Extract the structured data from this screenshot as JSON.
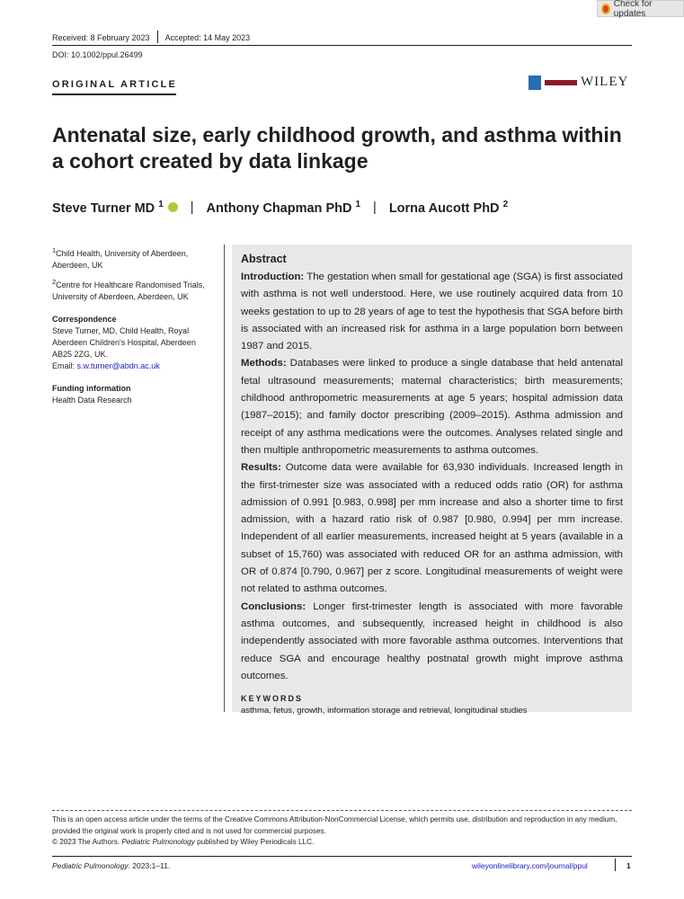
{
  "check_updates": "Check for updates",
  "received": "Received: 8 February 2023",
  "accepted": "Accepted: 14 May 2023",
  "doi": "DOI: 10.1002/ppul.26499",
  "article_type": "ORIGINAL ARTICLE",
  "publisher": "WILEY",
  "title": "Antenatal size, early childhood growth, and asthma within a cohort created by data linkage",
  "authors": [
    {
      "name": "Steve Turner MD",
      "sup": "1"
    },
    {
      "name": "Anthony Chapman PhD",
      "sup": "1"
    },
    {
      "name": "Lorna Aucott PhD",
      "sup": "2"
    }
  ],
  "affiliations": [
    {
      "sup": "1",
      "text": "Child Health, University of Aberdeen, Aberdeen, UK"
    },
    {
      "sup": "2",
      "text": "Centre for Healthcare Randomised Trials, University of Aberdeen, Aberdeen, UK"
    }
  ],
  "correspondence": {
    "heading": "Correspondence",
    "text": "Steve Turner, MD, Child Health, Royal Aberdeen Children's Hospital, Aberdeen AB25 2ZG, UK.",
    "email_label": "Email:",
    "email": "s.w.turner@abdn.ac.uk"
  },
  "funding": {
    "heading": "Funding information",
    "text": "Health Data Research"
  },
  "abstract": {
    "heading": "Abstract",
    "sections": [
      {
        "label": "Introduction:",
        "text": "The gestation when small for gestational age (SGA) is first associated with asthma is not well understood. Here, we use routinely acquired data from 10 weeks gestation to up to 28 years of age to test the hypothesis that SGA before birth is associated with an increased risk for asthma in a large population born between 1987 and 2015."
      },
      {
        "label": "Methods:",
        "text": "Databases were linked to produce a single database that held antenatal fetal ultrasound measurements; maternal characteristics; birth measurements; childhood anthropometric measurements at age 5 years; hospital admission data (1987–2015); and family doctor prescribing (2009–2015). Asthma admission and receipt of any asthma medications were the outcomes. Analyses related single and then multiple anthropometric measurements to asthma outcomes."
      },
      {
        "label": "Results:",
        "text": "Outcome data were available for 63,930 individuals. Increased length in the first-trimester size was associated with a reduced odds ratio (OR) for asthma admission of 0.991 [0.983, 0.998] per mm increase and also a shorter time to first admission, with a hazard ratio risk of 0.987 [0.980, 0.994] per mm increase. Independent of all earlier measurements, increased height at 5 years (available in a subset of 15,760) was associated with reduced OR for an asthma admission, with OR of 0.874 [0.790, 0.967] per z score. Longitudinal measurements of weight were not related to asthma outcomes."
      },
      {
        "label": "Conclusions:",
        "text": "Longer first-trimester length is associated with more favorable asthma outcomes, and subsequently, increased height in childhood is also independently associated with more favorable asthma outcomes. Interventions that reduce SGA and encourage healthy postnatal growth might improve asthma outcomes."
      }
    ],
    "keywords_heading": "KEYWORDS",
    "keywords": "asthma, fetus, growth, information storage and retrieval, longitudinal studies"
  },
  "license": {
    "line1": "This is an open access article under the terms of the Creative Commons Attribution-NonCommercial License, which permits use, distribution and reproduction in any medium, provided the original work is properly cited and is not used for commercial purposes.",
    "copyright_pre": "© 2023 The Authors. ",
    "journal": "Pediatric Pulmonology",
    "copyright_post": " published by Wiley Periodicals LLC."
  },
  "footer": {
    "journal": "Pediatric Pulmonology",
    "citation": ". 2023;1–11.",
    "url": "wileyonlinelibrary.com/journal/ppul",
    "page": "1"
  },
  "colors": {
    "abstract_bg": "#e8e8e9",
    "link": "#1a1aff",
    "orcid": "#a6ce39"
  }
}
